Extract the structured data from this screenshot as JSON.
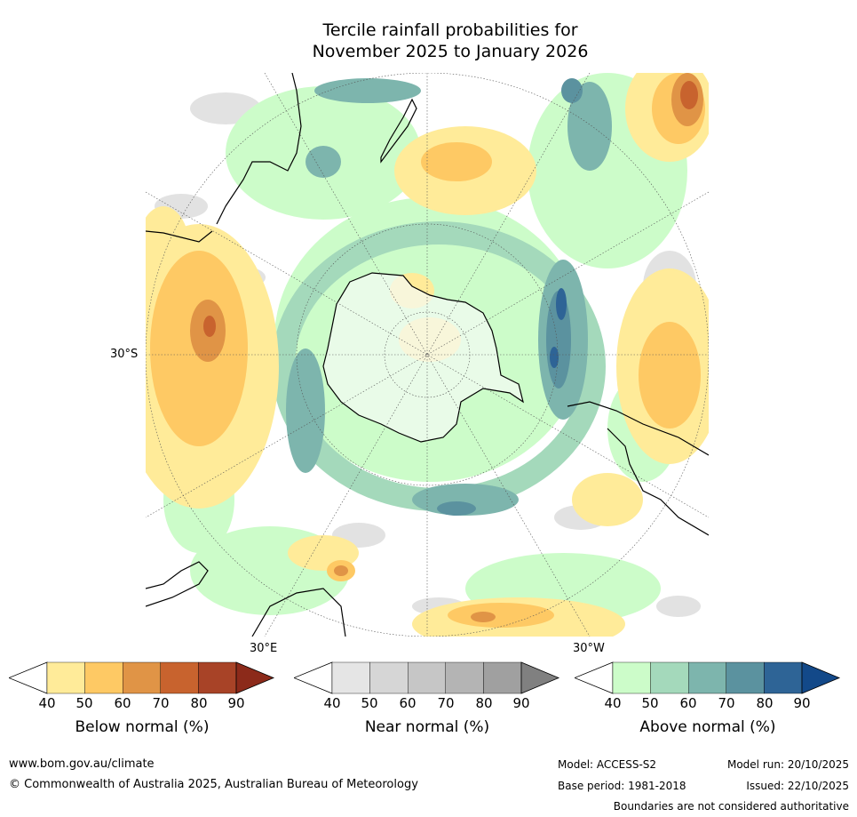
{
  "title_line1": "Tercile rainfall probabilities for",
  "title_line2": "November 2025 to January 2026",
  "map": {
    "lat_label": "30°S",
    "lon_label_left": "30°E",
    "lon_label_right": "30°W"
  },
  "colorbars": [
    {
      "id": "below",
      "title": "Below normal (%)",
      "ticks": [
        "40",
        "50",
        "60",
        "70",
        "80",
        "90"
      ],
      "colors": [
        "#ffffff",
        "#ffeb99",
        "#fec964",
        "#e09446",
        "#c8632e",
        "#a84327",
        "#8c2a1a"
      ]
    },
    {
      "id": "near",
      "title": "Near normal (%)",
      "ticks": [
        "40",
        "50",
        "60",
        "70",
        "80",
        "90"
      ],
      "colors": [
        "#ffffff",
        "#e5e5e5",
        "#d6d6d6",
        "#c6c6c6",
        "#b4b4b4",
        "#a0a0a0",
        "#808080"
      ]
    },
    {
      "id": "above",
      "title": "Above normal (%)",
      "ticks": [
        "40",
        "50",
        "60",
        "70",
        "80",
        "90"
      ],
      "colors": [
        "#ffffff",
        "#ccfcc9",
        "#a4d9bb",
        "#7db5ad",
        "#5b929f",
        "#2e6496",
        "#134989"
      ]
    }
  ],
  "footer": {
    "website": "www.bom.gov.au/climate",
    "copyright": "© Commonwealth of Australia 2025, Australian Bureau of Meteorology",
    "model": "Model: ACCESS-S2",
    "model_run": "Model run: 20/10/2025",
    "base_period": "Base period: 1981-2018",
    "issued": "Issued: 22/10/2025",
    "disclaimer": "Boundaries are not considered authoritative"
  }
}
